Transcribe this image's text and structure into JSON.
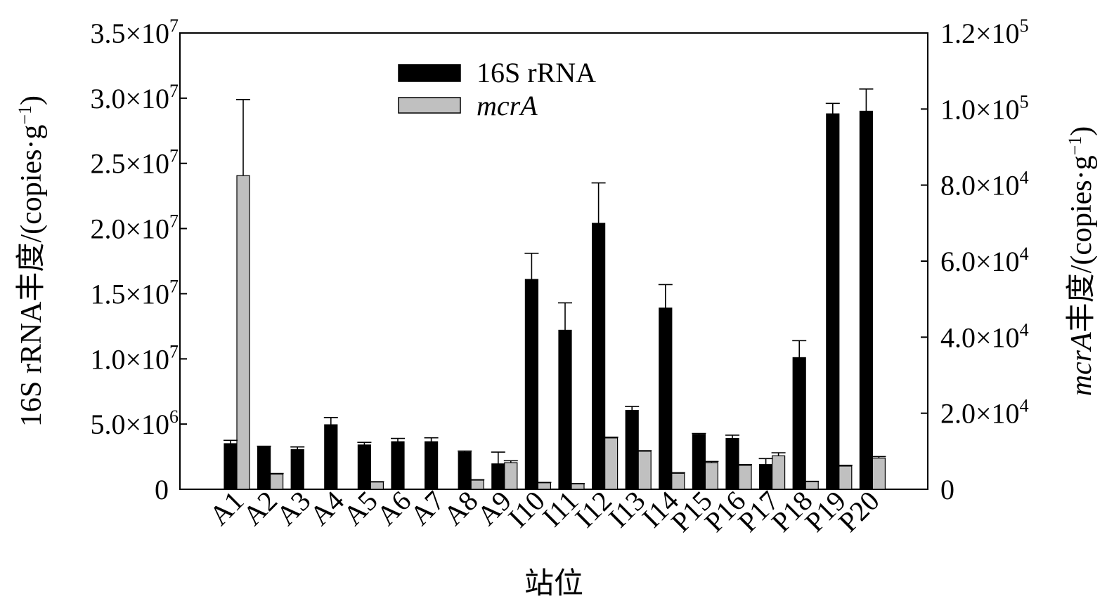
{
  "chart_data": {
    "type": "bar",
    "xlabel": "站位",
    "categories": [
      "A1",
      "A2",
      "A3",
      "A4",
      "A5",
      "A6",
      "A7",
      "A8",
      "A9",
      "I10",
      "I11",
      "I12",
      "I13",
      "I14",
      "P15",
      "P16",
      "P17",
      "P18",
      "P19",
      "P20"
    ],
    "series": [
      {
        "name": "16S rRNA",
        "axis": "left",
        "color": "#000000",
        "values": [
          3500000,
          3250000,
          3050000,
          4950000,
          3400000,
          3650000,
          3650000,
          2850000,
          1950000,
          16100000,
          12200000,
          20400000,
          6050000,
          13900000,
          4200000,
          3900000,
          1900000,
          10100000,
          28800000,
          29000000
        ],
        "errors": [
          250000,
          50000,
          200000,
          550000,
          200000,
          250000,
          300000,
          80000,
          900000,
          2000000,
          2100000,
          3100000,
          300000,
          1800000,
          80000,
          250000,
          450000,
          1300000,
          800000,
          1700000
        ]
      },
      {
        "name": "mcrA",
        "axis": "right",
        "color": "#c0c0c0",
        "values": [
          82500,
          4000,
          0,
          0,
          1900,
          0,
          0,
          2400,
          7000,
          1700,
          1400,
          13500,
          10000,
          4200,
          7000,
          6300,
          8800,
          2000,
          6100,
          8200
        ],
        "errors": [
          20000,
          150,
          0,
          0,
          100,
          0,
          0,
          100,
          500,
          100,
          100,
          200,
          150,
          150,
          300,
          200,
          800,
          100,
          200,
          400
        ]
      }
    ],
    "y_left": {
      "label_prefix": "16S rRNA丰度/(copies·g",
      "label_sup": "−1",
      "label_suffix": ")",
      "ylim": [
        0,
        35000000
      ],
      "ticks": [
        {
          "value": 0,
          "base": "0",
          "exp": ""
        },
        {
          "value": 5000000,
          "base": "5.0×10",
          "exp": "6"
        },
        {
          "value": 10000000,
          "base": "1.0×10",
          "exp": "7"
        },
        {
          "value": 15000000,
          "base": "1.5×10",
          "exp": "7"
        },
        {
          "value": 20000000,
          "base": "2.0×10",
          "exp": "7"
        },
        {
          "value": 25000000,
          "base": "2.5×10",
          "exp": "7"
        },
        {
          "value": 30000000,
          "base": "3.0×10",
          "exp": "7"
        },
        {
          "value": 35000000,
          "base": "3.5×10",
          "exp": "7"
        }
      ]
    },
    "y_right": {
      "label_italic": "mcrA",
      "label_prefix": "丰度/(copies·g",
      "label_sup": "−1",
      "label_suffix": ")",
      "ylim": [
        0,
        120000
      ],
      "ticks": [
        {
          "value": 0,
          "base": "0",
          "exp": ""
        },
        {
          "value": 20000,
          "base": "2.0×10",
          "exp": "4"
        },
        {
          "value": 40000,
          "base": "4.0×10",
          "exp": "4"
        },
        {
          "value": 60000,
          "base": "6.0×10",
          "exp": "4"
        },
        {
          "value": 80000,
          "base": "8.0×10",
          "exp": "4"
        },
        {
          "value": 100000,
          "base": "1.0×10",
          "exp": "5"
        },
        {
          "value": 120000,
          "base": "1.2×10",
          "exp": "5"
        }
      ]
    },
    "legend": {
      "position": "top-center",
      "entries": [
        {
          "label": "16S rRNA",
          "italic": false
        },
        {
          "label": "mcrA",
          "italic": true
        }
      ]
    },
    "grid": false
  }
}
